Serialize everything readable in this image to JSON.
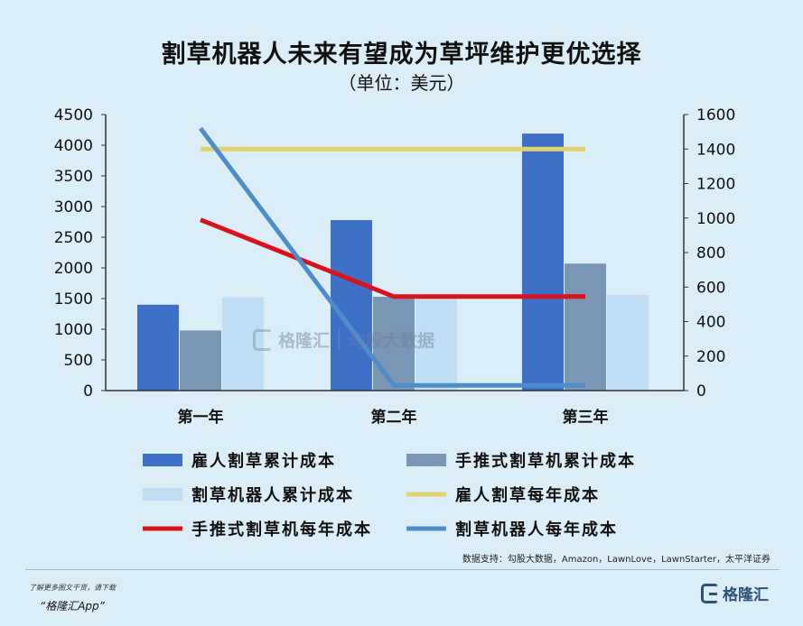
{
  "title": "割草机器人未来有望成为草坪维护更优选择",
  "subtitle": "（单位：美元）",
  "chart_data": {
    "type": "bar",
    "categories": [
      "第一年",
      "第二年",
      "第三年"
    ],
    "y_left": {
      "min": 0,
      "max": 4500,
      "ticks": [
        0,
        500,
        1000,
        1500,
        2000,
        2500,
        3000,
        3500,
        4000,
        4500
      ]
    },
    "y_right": {
      "min": 0,
      "max": 1600,
      "ticks": [
        0,
        200,
        400,
        600,
        800,
        1000,
        1200,
        1400,
        1600
      ]
    },
    "bar_series": [
      {
        "name": "雇人割草累计成本",
        "values": [
          1400,
          2780,
          4190
        ],
        "color": "#3f70c8"
      },
      {
        "name": "手推式割草机累计成本",
        "values": [
          980,
          1530,
          2070
        ],
        "color": "#7a96b5"
      },
      {
        "name": "割草机器人累计成本",
        "values": [
          1520,
          1530,
          1560
        ],
        "color": "#bfdef4"
      }
    ],
    "line_series": [
      {
        "name": "雇人割草每年成本",
        "values": [
          1400,
          1400,
          1400
        ],
        "color": "#e2d36c",
        "axis": "right"
      },
      {
        "name": "手推式割草机每年成本",
        "values": [
          990,
          545,
          545
        ],
        "color": "#d9121b",
        "axis": "right"
      },
      {
        "name": "割草机器人每年成本",
        "values": [
          1520,
          30,
          30
        ],
        "color": "#4e8dcc",
        "axis": "right"
      }
    ],
    "grid": false,
    "legend_position": "bottom"
  },
  "watermark": {
    "brand": "格隆汇",
    "partner": "勾股大数据"
  },
  "source": "数据支持：勾股大数据，Amazon，LawnLove，LawnStarter，太平洋证券",
  "footer": {
    "line1": "了解更多图文干货，请下载",
    "line2": "“格隆汇App”",
    "brand": "格隆汇"
  }
}
